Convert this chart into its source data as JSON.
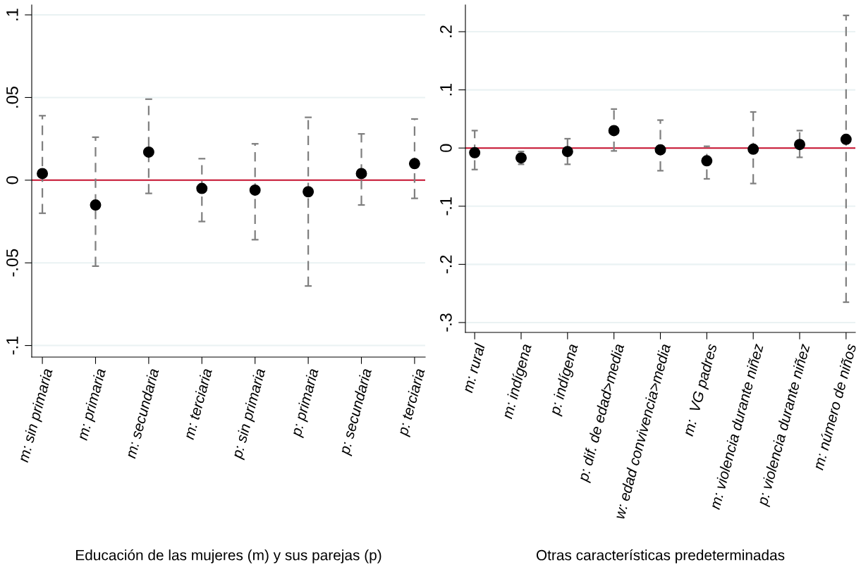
{
  "chart_data": [
    {
      "type": "scatter",
      "xlabel": "Educación de las mujeres (m) y sus parejas (p)",
      "categories": [
        "m: sin primaria",
        "m: primaria",
        "m: secundaria",
        "m: terciaria",
        "p: sin primaria",
        "p: primaria",
        "p: secundaria",
        "p: terciaria"
      ],
      "series": [
        {
          "color": "#000000",
          "values": [
            0.004,
            -0.015,
            0.017,
            -0.005,
            -0.006,
            -0.007,
            0.004,
            0.01
          ],
          "errors": [
            [
              -0.02,
              0.039
            ],
            [
              -0.052,
              0.026
            ],
            [
              -0.008,
              0.049
            ],
            [
              -0.025,
              0.013
            ],
            [
              -0.036,
              0.022
            ],
            [
              -0.064,
              0.038
            ],
            [
              -0.015,
              0.028
            ],
            [
              -0.011,
              0.037
            ]
          ]
        }
      ],
      "marker": "circle",
      "ylim": [
        -0.107,
        0.106
      ],
      "yticks": [
        {
          "value": -0.1,
          "label": "-.1"
        },
        {
          "value": -0.05,
          "label": "-.05"
        },
        0,
        {
          "value": 0.05,
          "label": ".05"
        },
        {
          "value": 0.1,
          "label": ".1"
        }
      ],
      "grid": "y",
      "ref_lines": [
        {
          "axis": "y",
          "value": 0,
          "color": "#c8102e"
        }
      ]
    },
    {
      "type": "scatter",
      "xlabel": "Otras características predeterminadas",
      "categories": [
        "m: rural",
        "m: indígena",
        "p: indígena",
        "p: dif. de edad>media",
        "w: edad convivencia>media",
        "m:  VG padres",
        "m: violencia durante niñez",
        "p: violencia durante niñez",
        "m: número de niños"
      ],
      "series": [
        {
          "color": "#000000",
          "values": [
            -0.008,
            -0.017,
            -0.006,
            0.03,
            -0.003,
            -0.022,
            -0.002,
            0.006,
            0.015
          ],
          "errors": [
            [
              -0.037,
              0.03
            ],
            [
              -0.028,
              -0.006
            ],
            [
              -0.028,
              0.016
            ],
            [
              -0.005,
              0.067
            ],
            [
              -0.039,
              0.048
            ],
            [
              -0.053,
              0.003
            ],
            [
              -0.061,
              0.062
            ],
            [
              -0.016,
              0.03
            ],
            [
              -0.265,
              0.228
            ]
          ]
        }
      ],
      "marker": "circle",
      "ylim": [
        -0.317,
        0.246
      ],
      "yticks": [
        {
          "value": -0.3,
          "label": "-.3"
        },
        {
          "value": -0.2,
          "label": "-.2"
        },
        {
          "value": -0.1,
          "label": "-.1"
        },
        0,
        {
          "value": 0.1,
          "label": ".1"
        },
        {
          "value": 0.2,
          "label": ".2"
        }
      ],
      "grid": "y",
      "ref_lines": [
        {
          "axis": "y",
          "value": 0,
          "color": "#c8102e"
        }
      ]
    }
  ]
}
